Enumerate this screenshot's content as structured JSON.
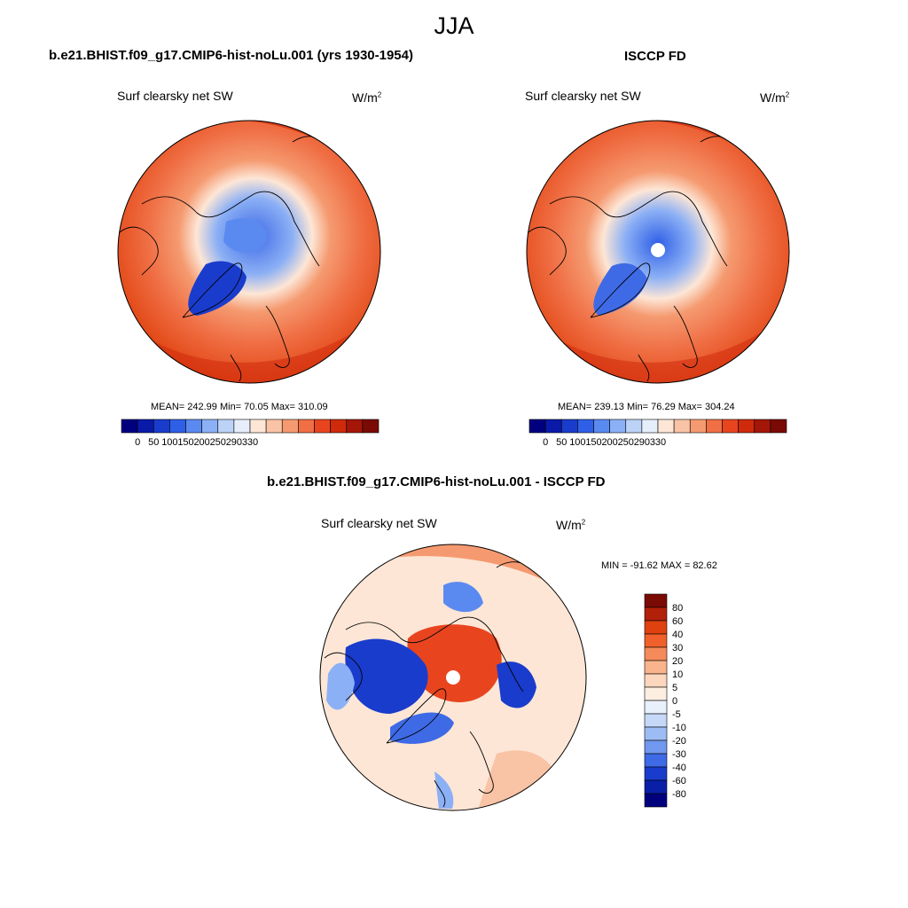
{
  "season": "JJA",
  "panels": [
    {
      "title": "b.e21.BHIST.f09_g17.CMIP6-hist-noLu.001 (yrs 1930-1954)",
      "subtitle": "Surf clearsky net SW",
      "units_base": "W/m",
      "units_exp": "2",
      "stats": "MEAN= 242.99  Min=  70.05  Max= 310.09"
    },
    {
      "title": "ISCCP FD",
      "subtitle": "Surf clearsky net SW",
      "units_base": "W/m",
      "units_exp": "2",
      "stats": "MEAN= 239.13  Min=  76.29  Max= 304.24"
    },
    {
      "title": "b.e21.BHIST.f09_g17.CMIP6-hist-noLu.001 - ISCCP FD",
      "subtitle": "Surf clearsky net SW",
      "units_base": "W/m",
      "units_exp": "2",
      "stats": "MIN = -91.62 MAX =  82.62"
    }
  ],
  "chart_data": [
    {
      "type": "heatmap",
      "projection": "north polar stereographic",
      "title": "b.e21.BHIST.f09_g17.CMIP6-hist-noLu.001 (yrs 1930-1954)",
      "variable": "Surf clearsky net SW",
      "units": "W/m2",
      "mean": 242.99,
      "min": 70.05,
      "max": 310.09,
      "colorbar_ticks": [
        "0",
        "50",
        "100",
        "150",
        "200",
        "250",
        "290",
        "330"
      ],
      "colorbar_colors": [
        "#00007f",
        "#0a1aa8",
        "#1a3ccc",
        "#2e5fe6",
        "#5a8af0",
        "#8cb0f5",
        "#bcd3f7",
        "#e6eefc",
        "#fde6d6",
        "#f9c3a5",
        "#f59a70",
        "#f06f45",
        "#e8451f",
        "#cf2a0c",
        "#a31608",
        "#7a0a04"
      ]
    },
    {
      "type": "heatmap",
      "projection": "north polar stereographic",
      "title": "ISCCP FD",
      "variable": "Surf clearsky net SW",
      "units": "W/m2",
      "mean": 239.13,
      "min": 76.29,
      "max": 304.24,
      "colorbar_ticks": [
        "0",
        "50",
        "100",
        "150",
        "200",
        "250",
        "290",
        "330"
      ],
      "colorbar_colors": [
        "#00007f",
        "#0a1aa8",
        "#1a3ccc",
        "#2e5fe6",
        "#5a8af0",
        "#8cb0f5",
        "#bcd3f7",
        "#e6eefc",
        "#fde6d6",
        "#f9c3a5",
        "#f59a70",
        "#f06f45",
        "#e8451f",
        "#cf2a0c",
        "#a31608",
        "#7a0a04"
      ]
    },
    {
      "type": "heatmap",
      "projection": "north polar stereographic",
      "title": "b.e21.BHIST.f09_g17.CMIP6-hist-noLu.001 - ISCCP FD",
      "variable": "Surf clearsky net SW",
      "units": "W/m2",
      "min": -91.62,
      "max": 82.62,
      "colorbar_ticks": [
        "80",
        "60",
        "40",
        "30",
        "20",
        "10",
        "5",
        "0",
        "-5",
        "-10",
        "-20",
        "-30",
        "-40",
        "-60",
        "-80"
      ],
      "colorbar_colors": [
        "#7a0a04",
        "#b3200a",
        "#e0420f",
        "#f0602a",
        "#f58a5a",
        "#f9b48c",
        "#fcd7bd",
        "#fdeee2",
        "#e8f0fc",
        "#c5d8f7",
        "#9dbcf3",
        "#6f98ee",
        "#3f6ae6",
        "#1a3ccc",
        "#0a1fa8",
        "#00007f"
      ]
    }
  ]
}
